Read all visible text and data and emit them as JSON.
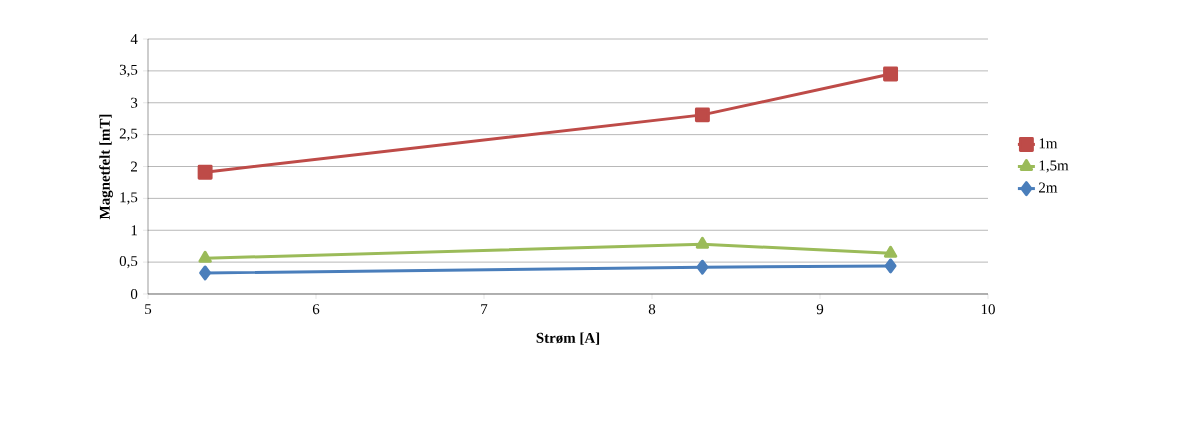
{
  "chart_data": {
    "type": "line",
    "xlabel": "Strøm [A]",
    "ylabel": "Magnetfelt [mT]",
    "xlim": [
      5,
      10
    ],
    "xticks": [
      5,
      6,
      7,
      8,
      9,
      10
    ],
    "ylim": [
      0,
      4
    ],
    "yticks": [
      0,
      {
        "value": 0.5,
        "label": "0,5"
      },
      1,
      {
        "value": 1.5,
        "label": "1,5"
      },
      2,
      {
        "value": 2.5,
        "label": "2,5"
      },
      3,
      {
        "value": 3.5,
        "label": "3,5"
      },
      4
    ],
    "grid": "y",
    "legend": "right",
    "line_style": "solid",
    "series": [
      {
        "name": "1m",
        "color": "#be4b48",
        "marker": "square",
        "x": [
          5.34,
          8.3,
          9.42
        ],
        "values": [
          1.91,
          2.81,
          3.45
        ]
      },
      {
        "name": "1,5m",
        "color": "#9bbb59",
        "marker": "triangle",
        "x": [
          5.34,
          8.3,
          9.42
        ],
        "values": [
          0.56,
          0.78,
          0.64
        ]
      },
      {
        "name": "2m",
        "color": "#4a7ebb",
        "marker": "diamond",
        "x": [
          5.34,
          8.3,
          9.42
        ],
        "values": [
          0.33,
          0.42,
          0.44
        ]
      }
    ]
  }
}
